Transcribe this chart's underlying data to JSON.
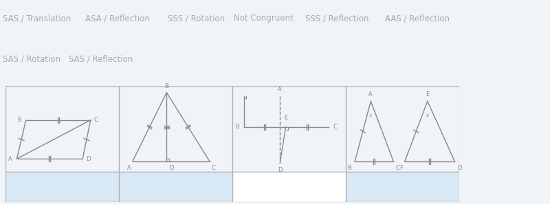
{
  "bg_color_top": "#f0f3f7",
  "bg_color_row2": "#dde6f0",
  "white": "#ffffff",
  "grid_color": "#b0b0b0",
  "line_color": "#888888",
  "chip_text": "#aaaaaa",
  "drop_bg": "#d8e8f5",
  "chips_row1": [
    "SAS / Translation",
    "ASA / Reflection",
    "SSS / Rotation",
    "Not Congruent",
    "SSS / Reflection",
    "AAS / Reflection"
  ],
  "chips_row2": [
    "SAS / Rotation",
    "SAS / Reflection"
  ],
  "chip_fontsize": 8.5,
  "fig_width": 8.0,
  "fig_height": 2.97
}
